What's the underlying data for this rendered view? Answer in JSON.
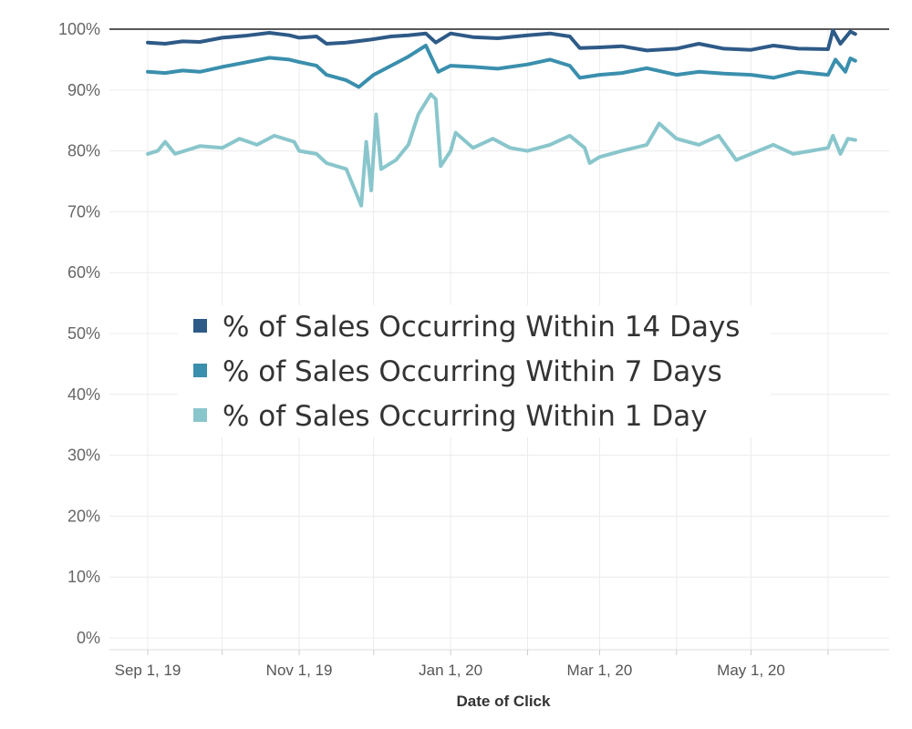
{
  "chart_data": {
    "type": "line",
    "title": "",
    "xlabel": "Date of Click",
    "ylabel": "",
    "ylim": [
      0,
      100
    ],
    "xlim": [
      "2019-09-01",
      "2020-06-15"
    ],
    "y_ticks": [
      0,
      10,
      20,
      30,
      40,
      50,
      60,
      70,
      80,
      90,
      100
    ],
    "y_tick_labels": [
      "0%",
      "10%",
      "20%",
      "30%",
      "40%",
      "50%",
      "60%",
      "70%",
      "80%",
      "90%",
      "100%"
    ],
    "x_ticks": [
      {
        "date": "2019-09-01",
        "label": "Sep 1, 19"
      },
      {
        "date": "2019-11-01",
        "label": "Nov 1, 19"
      },
      {
        "date": "2020-01-01",
        "label": "Jan 1, 20"
      },
      {
        "date": "2020-03-01",
        "label": "Mar 1, 20"
      },
      {
        "date": "2020-05-01",
        "label": "May 1, 20"
      }
    ],
    "x_minor_gridlines": [
      "2019-10-01",
      "2019-12-01",
      "2020-02-01",
      "2020-04-01",
      "2020-06-01"
    ],
    "reference_line_y": 100,
    "grid": true,
    "legend_position": "center",
    "series": [
      {
        "name": "% of Sales Occurring Within 14 Days",
        "color": "#2e5a87",
        "points": [
          [
            "2019-09-01",
            97.8
          ],
          [
            "2019-09-08",
            97.6
          ],
          [
            "2019-09-15",
            98.0
          ],
          [
            "2019-09-22",
            97.9
          ],
          [
            "2019-10-01",
            98.6
          ],
          [
            "2019-10-10",
            98.9
          ],
          [
            "2019-10-20",
            99.4
          ],
          [
            "2019-10-28",
            99.0
          ],
          [
            "2019-11-01",
            98.6
          ],
          [
            "2019-11-08",
            98.8
          ],
          [
            "2019-11-12",
            97.6
          ],
          [
            "2019-11-20",
            97.8
          ],
          [
            "2019-11-30",
            98.3
          ],
          [
            "2019-12-08",
            98.8
          ],
          [
            "2019-12-15",
            99.0
          ],
          [
            "2019-12-22",
            99.3
          ],
          [
            "2019-12-26",
            97.8
          ],
          [
            "2020-01-01",
            99.3
          ],
          [
            "2020-01-10",
            98.7
          ],
          [
            "2020-01-20",
            98.5
          ],
          [
            "2020-02-01",
            99.0
          ],
          [
            "2020-02-10",
            99.3
          ],
          [
            "2020-02-18",
            98.8
          ],
          [
            "2020-02-22",
            96.9
          ],
          [
            "2020-03-01",
            97.0
          ],
          [
            "2020-03-10",
            97.2
          ],
          [
            "2020-03-20",
            96.5
          ],
          [
            "2020-04-01",
            96.8
          ],
          [
            "2020-04-10",
            97.6
          ],
          [
            "2020-04-20",
            96.8
          ],
          [
            "2020-05-01",
            96.6
          ],
          [
            "2020-05-10",
            97.3
          ],
          [
            "2020-05-20",
            96.8
          ],
          [
            "2020-06-01",
            96.7
          ],
          [
            "2020-06-03",
            99.8
          ],
          [
            "2020-06-06",
            97.6
          ],
          [
            "2020-06-10",
            99.6
          ],
          [
            "2020-06-12",
            99.2
          ]
        ]
      },
      {
        "name": "% of Sales Occurring Within 7 Days",
        "color": "#3a8fad",
        "points": [
          [
            "2019-09-01",
            93.0
          ],
          [
            "2019-09-08",
            92.8
          ],
          [
            "2019-09-15",
            93.2
          ],
          [
            "2019-09-22",
            93.0
          ],
          [
            "2019-10-01",
            93.8
          ],
          [
            "2019-10-10",
            94.5
          ],
          [
            "2019-10-20",
            95.3
          ],
          [
            "2019-10-28",
            95.0
          ],
          [
            "2019-11-01",
            94.6
          ],
          [
            "2019-11-08",
            94.0
          ],
          [
            "2019-11-12",
            92.5
          ],
          [
            "2019-11-20",
            91.6
          ],
          [
            "2019-11-25",
            90.5
          ],
          [
            "2019-12-01",
            92.5
          ],
          [
            "2019-12-08",
            94.0
          ],
          [
            "2019-12-15",
            95.5
          ],
          [
            "2019-12-22",
            97.3
          ],
          [
            "2019-12-27",
            93.0
          ],
          [
            "2020-01-01",
            94.0
          ],
          [
            "2020-01-10",
            93.8
          ],
          [
            "2020-01-20",
            93.5
          ],
          [
            "2020-02-01",
            94.2
          ],
          [
            "2020-02-10",
            95.0
          ],
          [
            "2020-02-18",
            94.0
          ],
          [
            "2020-02-22",
            92.0
          ],
          [
            "2020-03-01",
            92.5
          ],
          [
            "2020-03-10",
            92.8
          ],
          [
            "2020-03-20",
            93.6
          ],
          [
            "2020-04-01",
            92.5
          ],
          [
            "2020-04-10",
            93.0
          ],
          [
            "2020-04-20",
            92.7
          ],
          [
            "2020-05-01",
            92.5
          ],
          [
            "2020-05-10",
            92.0
          ],
          [
            "2020-05-20",
            93.0
          ],
          [
            "2020-06-01",
            92.5
          ],
          [
            "2020-06-04",
            95.0
          ],
          [
            "2020-06-08",
            93.0
          ],
          [
            "2020-06-10",
            95.2
          ],
          [
            "2020-06-12",
            94.8
          ]
        ]
      },
      {
        "name": "% of Sales Occurring Within 1 Day",
        "color": "#89c6cc",
        "points": [
          [
            "2019-09-01",
            79.5
          ],
          [
            "2019-09-05",
            80.0
          ],
          [
            "2019-09-08",
            81.5
          ],
          [
            "2019-09-12",
            79.5
          ],
          [
            "2019-09-22",
            80.8
          ],
          [
            "2019-10-01",
            80.5
          ],
          [
            "2019-10-08",
            82.0
          ],
          [
            "2019-10-15",
            81.0
          ],
          [
            "2019-10-22",
            82.5
          ],
          [
            "2019-10-30",
            81.5
          ],
          [
            "2019-11-01",
            80.0
          ],
          [
            "2019-11-08",
            79.5
          ],
          [
            "2019-11-12",
            78.0
          ],
          [
            "2019-11-20",
            77.0
          ],
          [
            "2019-11-24",
            73.0
          ],
          [
            "2019-11-26",
            71.0
          ],
          [
            "2019-11-28",
            81.5
          ],
          [
            "2019-11-30",
            73.5
          ],
          [
            "2019-12-02",
            86.0
          ],
          [
            "2019-12-04",
            77.0
          ],
          [
            "2019-12-10",
            78.5
          ],
          [
            "2019-12-15",
            81.0
          ],
          [
            "2019-12-19",
            86.0
          ],
          [
            "2019-12-24",
            89.3
          ],
          [
            "2019-12-26",
            88.5
          ],
          [
            "2019-12-28",
            77.5
          ],
          [
            "2020-01-01",
            80.0
          ],
          [
            "2020-01-03",
            83.0
          ],
          [
            "2020-01-10",
            80.5
          ],
          [
            "2020-01-18",
            82.0
          ],
          [
            "2020-01-25",
            80.5
          ],
          [
            "2020-02-01",
            80.0
          ],
          [
            "2020-02-10",
            81.0
          ],
          [
            "2020-02-18",
            82.5
          ],
          [
            "2020-02-24",
            80.5
          ],
          [
            "2020-02-26",
            78.0
          ],
          [
            "2020-03-01",
            79.0
          ],
          [
            "2020-03-10",
            80.0
          ],
          [
            "2020-03-20",
            81.0
          ],
          [
            "2020-03-25",
            84.5
          ],
          [
            "2020-04-01",
            82.0
          ],
          [
            "2020-04-10",
            81.0
          ],
          [
            "2020-04-18",
            82.5
          ],
          [
            "2020-04-25",
            78.5
          ],
          [
            "2020-05-01",
            79.5
          ],
          [
            "2020-05-10",
            81.0
          ],
          [
            "2020-05-18",
            79.5
          ],
          [
            "2020-05-25",
            80.0
          ],
          [
            "2020-06-01",
            80.5
          ],
          [
            "2020-06-03",
            82.5
          ],
          [
            "2020-06-06",
            79.5
          ],
          [
            "2020-06-09",
            82.0
          ],
          [
            "2020-06-12",
            81.8
          ]
        ]
      }
    ]
  }
}
